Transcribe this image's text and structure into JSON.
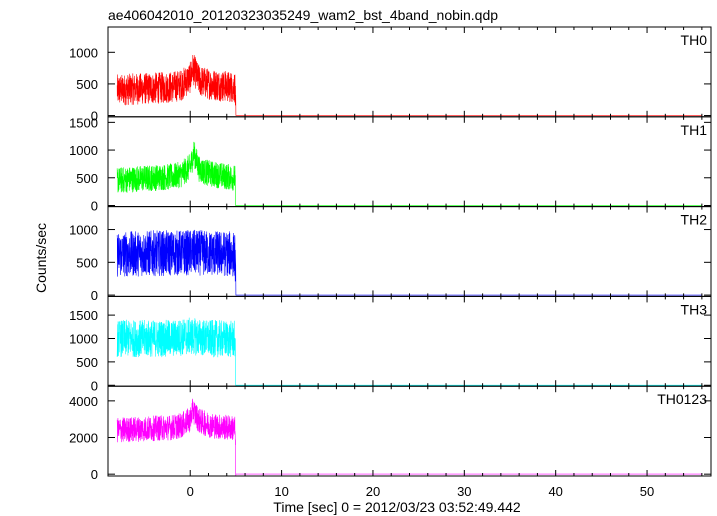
{
  "chart_data": {
    "type": "line",
    "title": "ae406042010_20120323035249_wam2_bst_4band_nobin.qdp",
    "xlabel": "Time [sec] 0 = 2012/03/23 03:52:49.442",
    "ylabel": "Counts/sec",
    "xlim": [
      -9,
      57
    ],
    "x_ticks": [
      0,
      10,
      20,
      30,
      40,
      50
    ],
    "grid": false,
    "data_span": [
      -8,
      56
    ],
    "burst_end": 5,
    "panels": [
      {
        "name": "TH0",
        "color": "#ff0000",
        "ylim": [
          -20,
          1400
        ],
        "y_ticks": [
          0,
          500,
          1000
        ],
        "series": {
          "name": "TH0",
          "x": [
            -8,
            -6,
            -4,
            -2,
            -1,
            0,
            0.3,
            1,
            2,
            3,
            4,
            4.9,
            5,
            10,
            20,
            30,
            40,
            50,
            56
          ],
          "y": [
            400,
            420,
            430,
            450,
            480,
            600,
            750,
            550,
            500,
            480,
            460,
            450,
            0,
            5,
            5,
            5,
            5,
            5,
            5
          ],
          "spread": 500
        }
      },
      {
        "name": "TH1",
        "color": "#00ff00",
        "ylim": [
          -20,
          1600
        ],
        "y_ticks": [
          0,
          500,
          1000,
          1500
        ],
        "series": {
          "name": "TH1",
          "x": [
            -8,
            -6,
            -4,
            -2,
            -1,
            0,
            0.4,
            1,
            2,
            3,
            4,
            4.9,
            5,
            10,
            20,
            30,
            40,
            50,
            56
          ],
          "y": [
            450,
            480,
            500,
            520,
            560,
            700,
            950,
            650,
            580,
            550,
            520,
            500,
            0,
            5,
            5,
            5,
            5,
            5,
            5
          ],
          "spread": 480
        }
      },
      {
        "name": "TH2",
        "color": "#0000ff",
        "ylim": [
          -20,
          1350
        ],
        "y_ticks": [
          0,
          500,
          1000
        ],
        "series": {
          "name": "TH2",
          "x": [
            -8,
            -6,
            -4,
            -2,
            0,
            2,
            4,
            4.9,
            5,
            10,
            20,
            30,
            40,
            50,
            56
          ],
          "y": [
            620,
            630,
            640,
            640,
            650,
            640,
            630,
            620,
            0,
            5,
            5,
            5,
            5,
            5,
            5
          ],
          "spread": 700
        }
      },
      {
        "name": "TH3",
        "color": "#00ffff",
        "ylim": [
          -20,
          1900
        ],
        "y_ticks": [
          0,
          500,
          1000,
          1500
        ],
        "series": {
          "name": "TH3",
          "x": [
            -8,
            -6,
            -4,
            -2,
            0,
            2,
            4,
            4.9,
            5,
            10,
            20,
            30,
            40,
            50,
            56
          ],
          "y": [
            1000,
            1000,
            1000,
            1000,
            1050,
            1000,
            990,
            980,
            0,
            5,
            5,
            5,
            5,
            5,
            5
          ],
          "spread": 800
        }
      },
      {
        "name": "TH0123",
        "color": "#ff00ff",
        "ylim": [
          -100,
          4800
        ],
        "y_ticks": [
          0,
          2000,
          4000
        ],
        "series": {
          "name": "TH0123",
          "x": [
            -8,
            -6,
            -4,
            -2,
            -1,
            0,
            0.3,
            1,
            2,
            3,
            4,
            4.9,
            5,
            10,
            20,
            30,
            40,
            50,
            56
          ],
          "y": [
            2400,
            2450,
            2500,
            2550,
            2650,
            3000,
            3500,
            2900,
            2700,
            2600,
            2550,
            2500,
            0,
            20,
            20,
            20,
            20,
            20,
            20
          ],
          "spread": 1400
        }
      }
    ]
  }
}
